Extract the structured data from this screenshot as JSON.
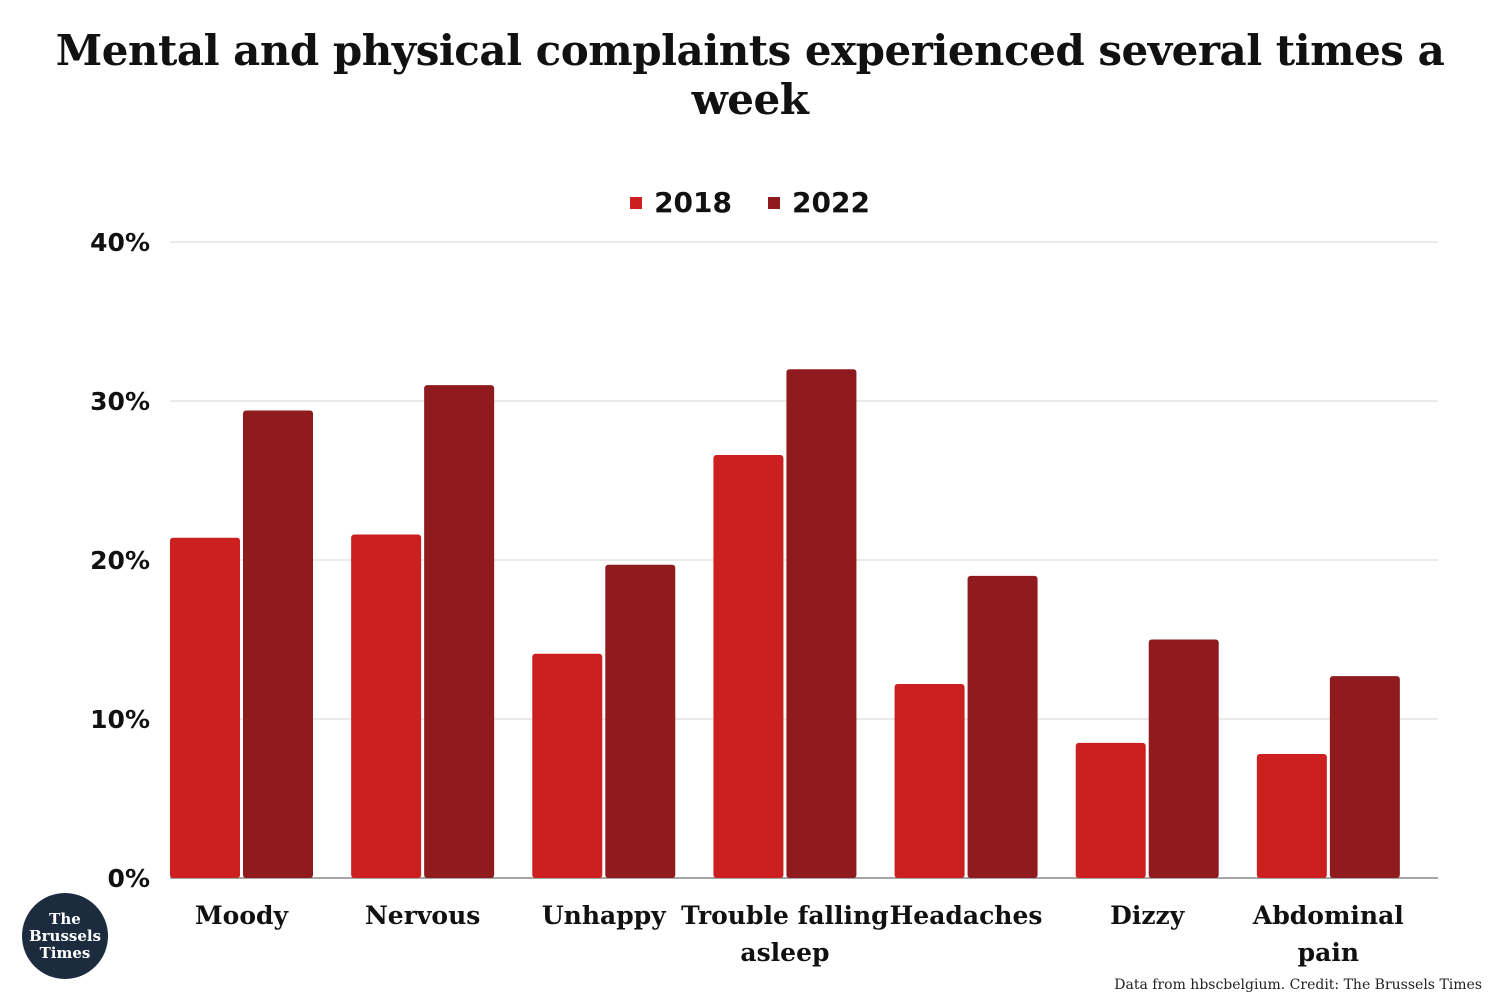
{
  "title": "Mental and physical complaints experienced several times a week",
  "credit": "Data from hbscbelgium. Credit: The Brussels Times",
  "logo_text": "The\nBrussels\nTimes",
  "colors": {
    "2018": "#cc1f1f",
    "2022": "#8f1b1e"
  },
  "chart_data": {
    "type": "bar",
    "categories": [
      "Moody",
      "Nervous",
      "Unhappy",
      "Trouble falling asleep",
      "Headaches",
      "Dizzy",
      "Abdominal pain"
    ],
    "category_lines": [
      [
        "Moody"
      ],
      [
        "Nervous"
      ],
      [
        "Unhappy"
      ],
      [
        "Trouble falling",
        "asleep"
      ],
      [
        "Headaches"
      ],
      [
        "Dizzy"
      ],
      [
        "Abdominal",
        "pain"
      ]
    ],
    "series": [
      {
        "name": "2018",
        "values": [
          21.4,
          21.6,
          14.1,
          26.6,
          12.2,
          8.5,
          7.8
        ]
      },
      {
        "name": "2022",
        "values": [
          29.4,
          31.0,
          19.7,
          32.0,
          19.0,
          15.0,
          12.7
        ]
      }
    ],
    "yticks": [
      "0%",
      "10%",
      "20%",
      "30%",
      "40%"
    ],
    "ylim": [
      0,
      40
    ],
    "grid": true,
    "legend_position": "top-center"
  }
}
